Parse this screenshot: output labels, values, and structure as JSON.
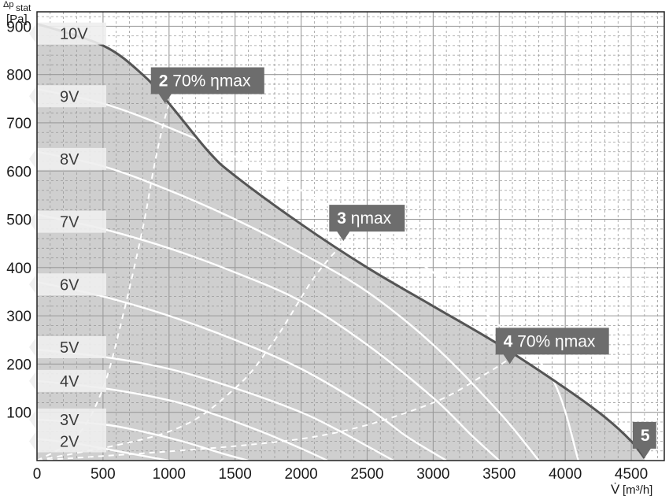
{
  "chart_data": {
    "type": "line",
    "ylabel": "Δp",
    "ylabel_sub": "stat",
    "ylabel_unit": "[Pa]",
    "xlabel": "V̇",
    "xlabel_unit": "[m³/h]",
    "xlim": [
      0,
      4750
    ],
    "ylim": [
      0,
      930
    ],
    "x_ticks": [
      0,
      500,
      1000,
      1500,
      2000,
      2500,
      3000,
      3500,
      4000,
      4500
    ],
    "y_ticks": [
      100,
      200,
      300,
      400,
      500,
      600,
      700,
      800,
      900
    ],
    "grid": true,
    "envelope": {
      "x": [
        0,
        500,
        800,
        1000,
        1300,
        1500,
        2000,
        2500,
        3000,
        3500,
        4000,
        4300,
        4500,
        4600
      ],
      "y": [
        905,
        860,
        800,
        740,
        640,
        590,
        490,
        400,
        320,
        240,
        150,
        90,
        40,
        5
      ]
    },
    "series": [
      {
        "name": "9V",
        "x": [
          0,
          500,
          1000,
          1500,
          2000,
          2500,
          3000,
          3500,
          3900,
          4100
        ],
        "y": [
          770,
          740,
          690,
          630,
          560,
          480,
          390,
          280,
          170,
          0
        ]
      },
      {
        "name": "8V",
        "x": [
          0,
          500,
          1000,
          1500,
          2000,
          2500,
          3000,
          3500,
          3800
        ],
        "y": [
          640,
          610,
          560,
          500,
          430,
          350,
          240,
          100,
          0
        ]
      },
      {
        "name": "7V",
        "x": [
          0,
          500,
          1000,
          1500,
          2000,
          2500,
          3000,
          3300,
          3500
        ],
        "y": [
          510,
          480,
          440,
          390,
          330,
          240,
          130,
          50,
          0
        ]
      },
      {
        "name": "6V",
        "x": [
          0,
          500,
          1000,
          1500,
          2000,
          2500,
          2800,
          3100
        ],
        "y": [
          370,
          340,
          300,
          250,
          190,
          110,
          50,
          0
        ]
      },
      {
        "name": "5V",
        "x": [
          0,
          500,
          1000,
          1500,
          2000,
          2300,
          2500,
          2700
        ],
        "y": [
          230,
          215,
          190,
          150,
          100,
          60,
          30,
          0
        ]
      },
      {
        "name": "4V",
        "x": [
          0,
          500,
          1000,
          1300,
          1700,
          2000,
          2200
        ],
        "y": [
          165,
          150,
          125,
          100,
          60,
          25,
          0
        ]
      },
      {
        "name": "3V",
        "x": [
          0,
          500,
          800,
          1100,
          1400,
          1600
        ],
        "y": [
          85,
          75,
          60,
          40,
          15,
          0
        ]
      },
      {
        "name": "2V",
        "x": [
          0,
          300,
          600,
          800,
          1000
        ],
        "y": [
          45,
          35,
          20,
          10,
          0
        ]
      }
    ],
    "efficiency_lines": [
      {
        "name": "70% ηmax (left)",
        "x": [
          0,
          300,
          500,
          650,
          800,
          880,
          950,
          1000
        ],
        "y": [
          0,
          50,
          150,
          300,
          480,
          600,
          690,
          740
        ]
      },
      {
        "name": "ηmax",
        "x": [
          0,
          1000,
          1500,
          1800,
          2100,
          2350
        ],
        "y": [
          0,
          60,
          150,
          250,
          380,
          460
        ]
      },
      {
        "name": "70% ηmax (right)",
        "x": [
          0,
          1500,
          2300,
          3000,
          3400,
          3600
        ],
        "y": [
          0,
          30,
          60,
          120,
          180,
          215
        ]
      }
    ],
    "voltage_labels": [
      "10V",
      "9V",
      "8V",
      "7V",
      "6V",
      "5V",
      "4V",
      "3V",
      "2V"
    ],
    "voltage_label_y": [
      885,
      755,
      625,
      495,
      365,
      235,
      165,
      85,
      40
    ],
    "annotations": [
      {
        "number": "2",
        "text": "70% ηmax",
        "x": 970,
        "y": 740,
        "point": "down"
      },
      {
        "number": "3",
        "text": "ηmax",
        "x": 2320,
        "y": 455,
        "point": "down"
      },
      {
        "number": "4",
        "text": "70% ηmax",
        "x": 3580,
        "y": 200,
        "point": "down"
      },
      {
        "number": "5",
        "text": "",
        "x": 4600,
        "y": 5,
        "point": "down"
      }
    ],
    "colors": {
      "envelope_fill": "#cfcfcf",
      "envelope_line": "#555555",
      "speed_curve": "#ffffff",
      "callout": "#6d6d6d",
      "label_tag": "#eeeeee",
      "grid": "#9a9a9a"
    }
  }
}
